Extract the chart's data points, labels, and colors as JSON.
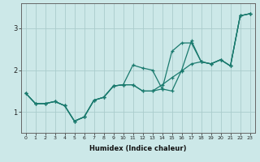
{
  "xlabel": "Humidex (Indice chaleur)",
  "bg_color": "#cce8e8",
  "line_color": "#1a7a6e",
  "grid_color": "#aacccc",
  "x_values": [
    0,
    1,
    2,
    3,
    4,
    5,
    6,
    7,
    8,
    9,
    10,
    11,
    12,
    13,
    14,
    15,
    16,
    17,
    18,
    19,
    20,
    21,
    22,
    23
  ],
  "line1": [
    1.45,
    1.2,
    1.2,
    1.25,
    1.15,
    0.78,
    0.88,
    1.28,
    1.35,
    1.62,
    1.65,
    2.12,
    2.05,
    2.0,
    1.55,
    1.5,
    2.0,
    2.7,
    2.2,
    2.15,
    2.25,
    2.1,
    3.3,
    3.35
  ],
  "line2": [
    1.45,
    1.2,
    1.2,
    1.25,
    1.15,
    0.78,
    0.88,
    1.28,
    1.35,
    1.62,
    1.65,
    1.65,
    1.5,
    1.5,
    1.55,
    2.45,
    2.65,
    2.65,
    2.2,
    2.15,
    2.25,
    2.1,
    3.3,
    3.35
  ],
  "line3": [
    1.45,
    1.2,
    1.2,
    1.25,
    1.15,
    0.78,
    0.88,
    1.28,
    1.35,
    1.62,
    1.65,
    1.65,
    1.5,
    1.5,
    1.65,
    1.82,
    1.98,
    2.15,
    2.2,
    2.15,
    2.25,
    2.1,
    3.3,
    3.35
  ],
  "ylim": [
    0.5,
    3.6
  ],
  "xlim": [
    -0.5,
    23.5
  ],
  "yticks": [
    1,
    2,
    3
  ],
  "xticks": [
    0,
    1,
    2,
    3,
    4,
    5,
    6,
    7,
    8,
    9,
    10,
    11,
    12,
    13,
    14,
    15,
    16,
    17,
    18,
    19,
    20,
    21,
    22,
    23
  ],
  "xlabel_fontsize": 6,
  "tick_fontsize": 4.5,
  "ytick_fontsize": 6
}
